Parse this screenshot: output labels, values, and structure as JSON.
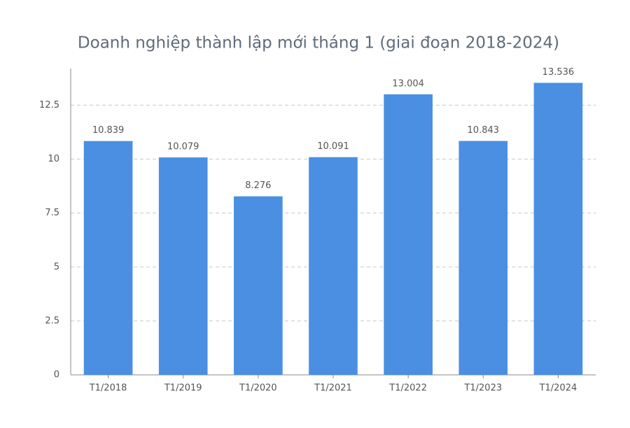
{
  "chart_data": {
    "type": "bar",
    "title": "Doanh nghiệp thành lập mới tháng 1 (giai đoạn 2018-2024)",
    "categories": [
      "T1/2018",
      "T1/2019",
      "T1/2020",
      "T1/2021",
      "T1/2022",
      "T1/2023",
      "T1/2024"
    ],
    "values": [
      10.839,
      10.079,
      8.276,
      10.091,
      13.004,
      10.843,
      13.536
    ],
    "color": "#4a8fe2",
    "ylim": [
      0,
      14.2
    ],
    "yticks": [
      0,
      2.5,
      5,
      7.5,
      10,
      12.5
    ],
    "grid": true
  }
}
